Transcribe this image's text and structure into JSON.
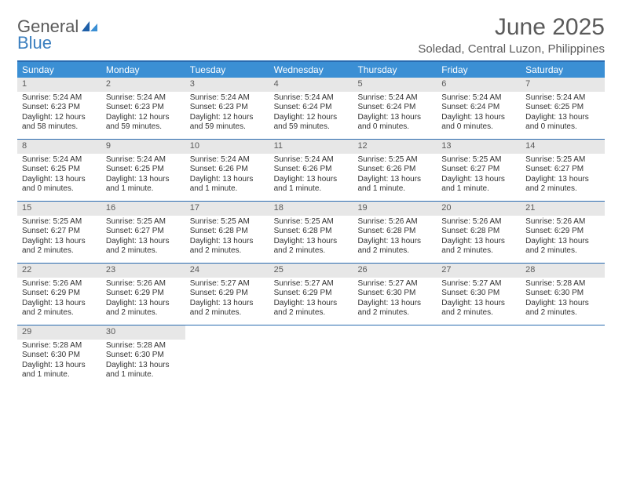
{
  "logo": {
    "text_general": "General",
    "text_blue": "Blue"
  },
  "title": "June 2025",
  "location": "Soledad, Central Luzon, Philippines",
  "colors": {
    "header_bg": "#3b8fd4",
    "border": "#2a6bb0",
    "daynum_bg": "#e7e7e7",
    "text_gray": "#5a5a5a",
    "logo_blue": "#3b7fbf"
  },
  "weekdays": [
    "Sunday",
    "Monday",
    "Tuesday",
    "Wednesday",
    "Thursday",
    "Friday",
    "Saturday"
  ],
  "weeks": [
    [
      {
        "n": "1",
        "sunrise": "Sunrise: 5:24 AM",
        "sunset": "Sunset: 6:23 PM",
        "d1": "Daylight: 12 hours",
        "d2": "and 58 minutes."
      },
      {
        "n": "2",
        "sunrise": "Sunrise: 5:24 AM",
        "sunset": "Sunset: 6:23 PM",
        "d1": "Daylight: 12 hours",
        "d2": "and 59 minutes."
      },
      {
        "n": "3",
        "sunrise": "Sunrise: 5:24 AM",
        "sunset": "Sunset: 6:23 PM",
        "d1": "Daylight: 12 hours",
        "d2": "and 59 minutes."
      },
      {
        "n": "4",
        "sunrise": "Sunrise: 5:24 AM",
        "sunset": "Sunset: 6:24 PM",
        "d1": "Daylight: 12 hours",
        "d2": "and 59 minutes."
      },
      {
        "n": "5",
        "sunrise": "Sunrise: 5:24 AM",
        "sunset": "Sunset: 6:24 PM",
        "d1": "Daylight: 13 hours",
        "d2": "and 0 minutes."
      },
      {
        "n": "6",
        "sunrise": "Sunrise: 5:24 AM",
        "sunset": "Sunset: 6:24 PM",
        "d1": "Daylight: 13 hours",
        "d2": "and 0 minutes."
      },
      {
        "n": "7",
        "sunrise": "Sunrise: 5:24 AM",
        "sunset": "Sunset: 6:25 PM",
        "d1": "Daylight: 13 hours",
        "d2": "and 0 minutes."
      }
    ],
    [
      {
        "n": "8",
        "sunrise": "Sunrise: 5:24 AM",
        "sunset": "Sunset: 6:25 PM",
        "d1": "Daylight: 13 hours",
        "d2": "and 0 minutes."
      },
      {
        "n": "9",
        "sunrise": "Sunrise: 5:24 AM",
        "sunset": "Sunset: 6:25 PM",
        "d1": "Daylight: 13 hours",
        "d2": "and 1 minute."
      },
      {
        "n": "10",
        "sunrise": "Sunrise: 5:24 AM",
        "sunset": "Sunset: 6:26 PM",
        "d1": "Daylight: 13 hours",
        "d2": "and 1 minute."
      },
      {
        "n": "11",
        "sunrise": "Sunrise: 5:24 AM",
        "sunset": "Sunset: 6:26 PM",
        "d1": "Daylight: 13 hours",
        "d2": "and 1 minute."
      },
      {
        "n": "12",
        "sunrise": "Sunrise: 5:25 AM",
        "sunset": "Sunset: 6:26 PM",
        "d1": "Daylight: 13 hours",
        "d2": "and 1 minute."
      },
      {
        "n": "13",
        "sunrise": "Sunrise: 5:25 AM",
        "sunset": "Sunset: 6:27 PM",
        "d1": "Daylight: 13 hours",
        "d2": "and 1 minute."
      },
      {
        "n": "14",
        "sunrise": "Sunrise: 5:25 AM",
        "sunset": "Sunset: 6:27 PM",
        "d1": "Daylight: 13 hours",
        "d2": "and 2 minutes."
      }
    ],
    [
      {
        "n": "15",
        "sunrise": "Sunrise: 5:25 AM",
        "sunset": "Sunset: 6:27 PM",
        "d1": "Daylight: 13 hours",
        "d2": "and 2 minutes."
      },
      {
        "n": "16",
        "sunrise": "Sunrise: 5:25 AM",
        "sunset": "Sunset: 6:27 PM",
        "d1": "Daylight: 13 hours",
        "d2": "and 2 minutes."
      },
      {
        "n": "17",
        "sunrise": "Sunrise: 5:25 AM",
        "sunset": "Sunset: 6:28 PM",
        "d1": "Daylight: 13 hours",
        "d2": "and 2 minutes."
      },
      {
        "n": "18",
        "sunrise": "Sunrise: 5:25 AM",
        "sunset": "Sunset: 6:28 PM",
        "d1": "Daylight: 13 hours",
        "d2": "and 2 minutes."
      },
      {
        "n": "19",
        "sunrise": "Sunrise: 5:26 AM",
        "sunset": "Sunset: 6:28 PM",
        "d1": "Daylight: 13 hours",
        "d2": "and 2 minutes."
      },
      {
        "n": "20",
        "sunrise": "Sunrise: 5:26 AM",
        "sunset": "Sunset: 6:28 PM",
        "d1": "Daylight: 13 hours",
        "d2": "and 2 minutes."
      },
      {
        "n": "21",
        "sunrise": "Sunrise: 5:26 AM",
        "sunset": "Sunset: 6:29 PM",
        "d1": "Daylight: 13 hours",
        "d2": "and 2 minutes."
      }
    ],
    [
      {
        "n": "22",
        "sunrise": "Sunrise: 5:26 AM",
        "sunset": "Sunset: 6:29 PM",
        "d1": "Daylight: 13 hours",
        "d2": "and 2 minutes."
      },
      {
        "n": "23",
        "sunrise": "Sunrise: 5:26 AM",
        "sunset": "Sunset: 6:29 PM",
        "d1": "Daylight: 13 hours",
        "d2": "and 2 minutes."
      },
      {
        "n": "24",
        "sunrise": "Sunrise: 5:27 AM",
        "sunset": "Sunset: 6:29 PM",
        "d1": "Daylight: 13 hours",
        "d2": "and 2 minutes."
      },
      {
        "n": "25",
        "sunrise": "Sunrise: 5:27 AM",
        "sunset": "Sunset: 6:29 PM",
        "d1": "Daylight: 13 hours",
        "d2": "and 2 minutes."
      },
      {
        "n": "26",
        "sunrise": "Sunrise: 5:27 AM",
        "sunset": "Sunset: 6:30 PM",
        "d1": "Daylight: 13 hours",
        "d2": "and 2 minutes."
      },
      {
        "n": "27",
        "sunrise": "Sunrise: 5:27 AM",
        "sunset": "Sunset: 6:30 PM",
        "d1": "Daylight: 13 hours",
        "d2": "and 2 minutes."
      },
      {
        "n": "28",
        "sunrise": "Sunrise: 5:28 AM",
        "sunset": "Sunset: 6:30 PM",
        "d1": "Daylight: 13 hours",
        "d2": "and 2 minutes."
      }
    ],
    [
      {
        "n": "29",
        "sunrise": "Sunrise: 5:28 AM",
        "sunset": "Sunset: 6:30 PM",
        "d1": "Daylight: 13 hours",
        "d2": "and 1 minute."
      },
      {
        "n": "30",
        "sunrise": "Sunrise: 5:28 AM",
        "sunset": "Sunset: 6:30 PM",
        "d1": "Daylight: 13 hours",
        "d2": "and 1 minute."
      },
      null,
      null,
      null,
      null,
      null
    ]
  ]
}
